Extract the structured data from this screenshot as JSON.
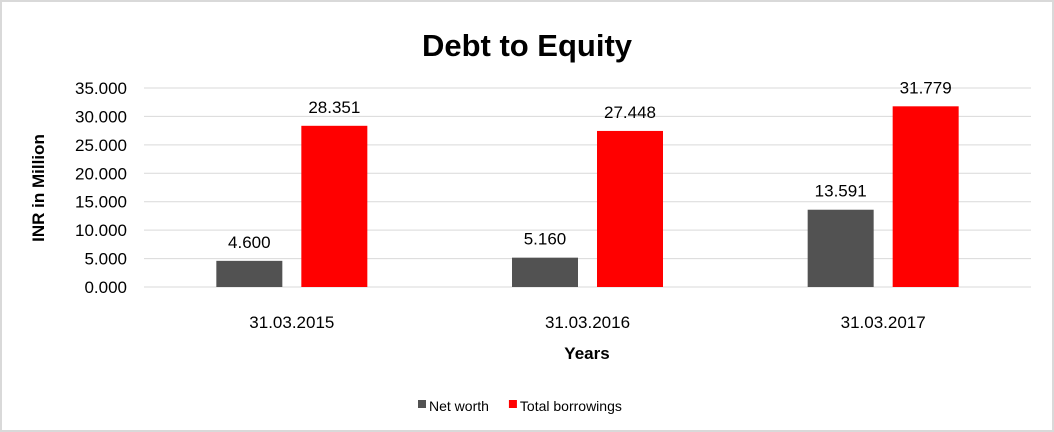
{
  "chart_data": {
    "type": "bar",
    "title": "Debt to Equity",
    "xlabel": "Years",
    "ylabel": "INR in Million",
    "categories": [
      "31.03.2015",
      "31.03.2016",
      "31.03.2017"
    ],
    "series": [
      {
        "name": "Net worth",
        "values": [
          4.6,
          5.16,
          13.591
        ],
        "labels": [
          "4.600",
          "5.160",
          "13.591"
        ],
        "color": "#525252"
      },
      {
        "name": "Total borrowings",
        "values": [
          28.351,
          27.448,
          31.779
        ],
        "labels": [
          "28.351",
          "27.448",
          "31.779"
        ],
        "color": "#ff0000"
      }
    ],
    "ylim": [
      0,
      35
    ],
    "yticks": [
      "0.000",
      "5.000",
      "10.000",
      "15.000",
      "20.000",
      "25.000",
      "30.000",
      "35.000"
    ],
    "grid": true,
    "legend": "bottom"
  }
}
